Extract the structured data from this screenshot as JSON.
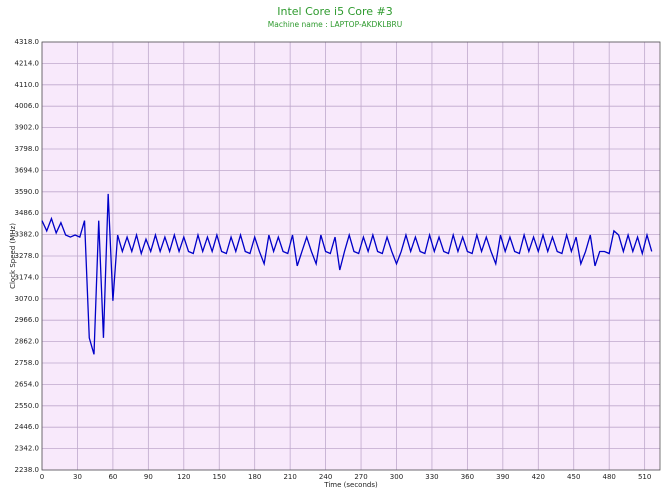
{
  "chart_data": {
    "type": "line",
    "title": "Intel Core i5 Core #3",
    "subtitle": "Machine name : LAPTOP-AKDKLBRU",
    "x_label": "Time (seconds)",
    "y_label": "Clock Speed (MHz)",
    "grid": true,
    "plot_background": "#f8e9fb",
    "xlim": [
      0,
      523
    ],
    "xticks": [
      0,
      30,
      60,
      90,
      120,
      150,
      180,
      210,
      240,
      270,
      300,
      330,
      360,
      390,
      420,
      450,
      480,
      510
    ],
    "ylim": [
      2238,
      4318
    ],
    "yticks": [
      {
        "value": 2238,
        "label": "2238.0"
      },
      {
        "value": 2342,
        "label": "2342.0"
      },
      {
        "value": 2446,
        "label": "2446.0"
      },
      {
        "value": 2550,
        "label": "2550.0"
      },
      {
        "value": 2654,
        "label": "2654.0"
      },
      {
        "value": 2758,
        "label": "2758.0"
      },
      {
        "value": 2862,
        "label": "2862.0"
      },
      {
        "value": 2966,
        "label": "2966.0"
      },
      {
        "value": 3070,
        "label": "3070.0"
      },
      {
        "value": 3174,
        "label": "3174.0"
      },
      {
        "value": 3278,
        "label": "3278.0"
      },
      {
        "value": 3382,
        "label": "3382.0"
      },
      {
        "value": 3486,
        "label": "3486.0"
      },
      {
        "value": 3590,
        "label": "3590.0"
      },
      {
        "value": 3694,
        "label": "3694.0"
      },
      {
        "value": 3798,
        "label": "3798.0"
      },
      {
        "value": 3902,
        "label": "3902.0"
      },
      {
        "value": 4006,
        "label": "4006.0"
      },
      {
        "value": 4110,
        "label": "4110.0"
      },
      {
        "value": 4214,
        "label": "4214.0"
      },
      {
        "value": 4318,
        "label": "4318.0"
      }
    ],
    "x": [
      0,
      4,
      8,
      12,
      16,
      20,
      24,
      28,
      32,
      36,
      40,
      44,
      48,
      52,
      56,
      60,
      64,
      68,
      72,
      76,
      80,
      84,
      88,
      92,
      96,
      100,
      104,
      108,
      112,
      116,
      120,
      124,
      128,
      132,
      136,
      140,
      144,
      148,
      152,
      156,
      160,
      164,
      168,
      172,
      176,
      180,
      184,
      188,
      192,
      196,
      200,
      204,
      208,
      212,
      216,
      220,
      224,
      228,
      232,
      236,
      240,
      244,
      248,
      252,
      256,
      260,
      264,
      268,
      272,
      276,
      280,
      284,
      288,
      292,
      296,
      300,
      304,
      308,
      312,
      316,
      320,
      324,
      328,
      332,
      336,
      340,
      344,
      348,
      352,
      356,
      360,
      364,
      368,
      372,
      376,
      380,
      384,
      388,
      392,
      396,
      400,
      404,
      408,
      412,
      416,
      420,
      424,
      428,
      432,
      436,
      440,
      444,
      448,
      452,
      456,
      460,
      464,
      468,
      472,
      476,
      480,
      484,
      488,
      492,
      496,
      500,
      504,
      508,
      512,
      516
    ],
    "series": [
      {
        "name": "Clock Speed",
        "color": "#0000c8",
        "values": [
          3450,
          3400,
          3460,
          3390,
          3440,
          3380,
          3370,
          3380,
          3370,
          3450,
          2880,
          2800,
          3450,
          2880,
          3580,
          3060,
          3380,
          3300,
          3370,
          3300,
          3380,
          3290,
          3360,
          3300,
          3380,
          3300,
          3370,
          3300,
          3380,
          3300,
          3370,
          3300,
          3290,
          3380,
          3300,
          3370,
          3300,
          3380,
          3300,
          3290,
          3370,
          3300,
          3380,
          3300,
          3290,
          3370,
          3300,
          3240,
          3380,
          3300,
          3370,
          3300,
          3290,
          3380,
          3230,
          3300,
          3370,
          3300,
          3240,
          3380,
          3300,
          3290,
          3370,
          3210,
          3300,
          3380,
          3300,
          3290,
          3370,
          3300,
          3380,
          3300,
          3290,
          3370,
          3300,
          3240,
          3300,
          3380,
          3300,
          3370,
          3300,
          3290,
          3380,
          3300,
          3370,
          3300,
          3290,
          3380,
          3300,
          3370,
          3300,
          3290,
          3380,
          3300,
          3370,
          3300,
          3240,
          3380,
          3300,
          3370,
          3300,
          3290,
          3380,
          3300,
          3370,
          3300,
          3380,
          3300,
          3370,
          3300,
          3290,
          3380,
          3300,
          3370,
          3240,
          3300,
          3380,
          3230,
          3300,
          3300,
          3290,
          3400,
          3380,
          3300,
          3380,
          3300,
          3370,
          3290,
          3380,
          3300
        ]
      }
    ]
  }
}
